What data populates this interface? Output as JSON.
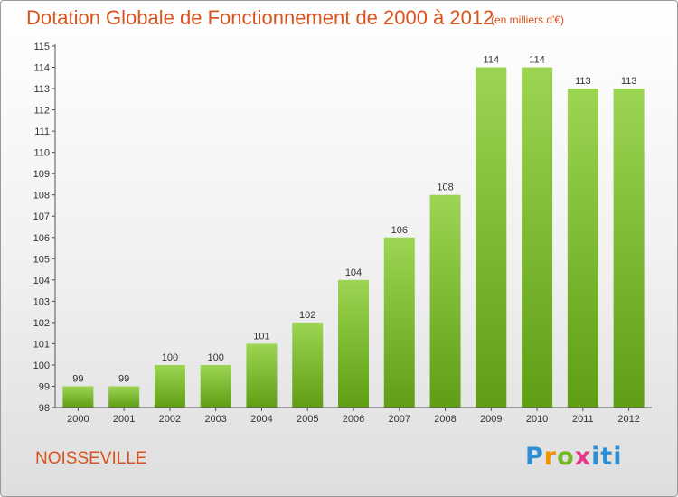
{
  "title": "Dotation Globale de Fonctionnement de 2000 à 2012",
  "unit": "(en milliers d'€)",
  "commune": "NOISSEVILLE",
  "logo_text": "Proxiti",
  "colors": {
    "title": "#d9531e",
    "bar_light": "#9cd552",
    "bar_dark": "#5f9e14"
  },
  "chart_data": {
    "type": "bar",
    "title": "Dotation Globale de Fonctionnement de 2000 à 2012",
    "categories": [
      "2000",
      "2001",
      "2002",
      "2003",
      "2004",
      "2005",
      "2006",
      "2007",
      "2008",
      "2009",
      "2010",
      "2011",
      "2012"
    ],
    "values": [
      99,
      99,
      100,
      100,
      101,
      102,
      104,
      106,
      108,
      114,
      114,
      113,
      113
    ],
    "value_labels": [
      "99",
      "99",
      "100",
      "100",
      "101",
      "102",
      "104",
      "106",
      "108",
      "114",
      "114",
      "113",
      "113"
    ],
    "ylim": [
      98,
      115
    ],
    "y_tick_labels": [
      "98",
      "99",
      "100",
      "101",
      "102",
      "103",
      "104",
      "105",
      "106",
      "107",
      "108",
      "109",
      "110",
      "111",
      "112",
      "113",
      "114",
      "115"
    ],
    "grid": false,
    "legend": "none"
  }
}
